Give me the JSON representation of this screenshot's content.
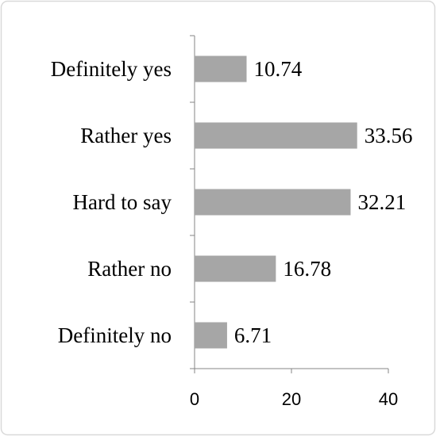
{
  "chart_data": {
    "type": "bar",
    "orientation": "horizontal",
    "categories": [
      "Definitely yes",
      "Rather yes",
      "Hard to say",
      "Rather no",
      "Definitely no"
    ],
    "values": [
      10.74,
      33.56,
      32.21,
      16.78,
      6.71
    ],
    "color": "#a6a6a6",
    "xlim": [
      0,
      40
    ],
    "xticks": [
      0,
      20,
      40
    ],
    "grid": false
  }
}
